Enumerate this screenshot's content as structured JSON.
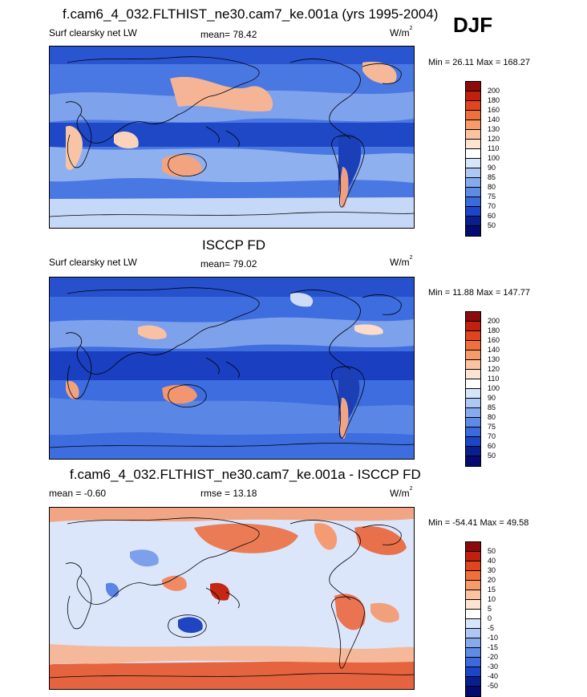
{
  "season": "DJF",
  "panels": [
    {
      "title": "f.cam6_4_032.FLTHIST_ne30.cam7_ke.001a (yrs 1995-2004)",
      "left_label": "Surf clearsky net LW",
      "stat1": "mean=  78.42",
      "stat2": "",
      "units": "W/m",
      "units_sup": "2",
      "minmax": "Min =  26.11 Max = 168.27",
      "colorbar_ticks": [
        "200",
        "180",
        "160",
        "140",
        "130",
        "120",
        "110",
        "100",
        "90",
        "85",
        "80",
        "75",
        "70",
        "60",
        "50"
      ],
      "colorbar_colors": [
        "#8b0a0a",
        "#c1200f",
        "#e0451f",
        "#f0703c",
        "#f89a6a",
        "#fbc3a0",
        "#fde4d2",
        "#ffffff",
        "#d7e5fb",
        "#aec8f5",
        "#86aaee",
        "#5e8be6",
        "#3a6ade",
        "#1c45c8",
        "#0a1f8f",
        "#050a70"
      ],
      "map_palette": "abs"
    },
    {
      "title": "ISCCP FD",
      "left_label": "Surf clearsky net LW",
      "stat1": "mean=  79.02",
      "stat2": "",
      "units": "W/m",
      "units_sup": "2",
      "minmax": "Min =  11.88 Max = 147.77",
      "colorbar_ticks": [
        "200",
        "180",
        "160",
        "140",
        "130",
        "120",
        "110",
        "100",
        "90",
        "85",
        "80",
        "75",
        "70",
        "60",
        "50"
      ],
      "colorbar_colors": [
        "#8b0a0a",
        "#c1200f",
        "#e0451f",
        "#f0703c",
        "#f89a6a",
        "#fbc3a0",
        "#fde4d2",
        "#ffffff",
        "#d7e5fb",
        "#aec8f5",
        "#86aaee",
        "#5e8be6",
        "#3a6ade",
        "#1c45c8",
        "#0a1f8f",
        "#050a70"
      ],
      "map_palette": "abs"
    },
    {
      "title": "f.cam6_4_032.FLTHIST_ne30.cam7_ke.001a - ISCCP FD",
      "left_label": "mean =  -0.60",
      "stat1": "rmse =  13.18",
      "stat2": "",
      "units": "W/m",
      "units_sup": "2",
      "minmax": "Min = -54.41 Max =  49.58",
      "colorbar_ticks": [
        "50",
        "40",
        "30",
        "20",
        "15",
        "10",
        "5",
        "0",
        "-5",
        "-10",
        "-15",
        "-20",
        "-30",
        "-40",
        "-50"
      ],
      "colorbar_colors": [
        "#8b0a0a",
        "#c1200f",
        "#e0451f",
        "#f0703c",
        "#f89a6a",
        "#fbc3a0",
        "#fde4d2",
        "#ffffff",
        "#d7e5fb",
        "#aec8f5",
        "#86aaee",
        "#5e8be6",
        "#3a6ade",
        "#1c45c8",
        "#0a1f8f",
        "#050a70"
      ],
      "map_palette": "diff"
    }
  ]
}
